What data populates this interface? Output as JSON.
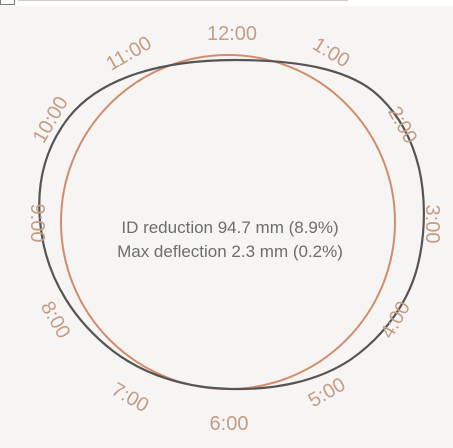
{
  "window": {
    "title": ""
  },
  "overlay": {
    "visible_toggle": "checkbox"
  },
  "clock_labels": [
    "12:00",
    "1:00",
    "2:00",
    "3:00",
    "4:00",
    "5:00",
    "6:00",
    "7:00",
    "8:00",
    "9:00",
    "10:00",
    "11:00"
  ],
  "summary": {
    "line1": "ID reduction 94.7 mm (8.9%)",
    "line2": "Max deflection 2.3 mm (0.2%)"
  },
  "colors": {
    "background": "#f7f5f4",
    "reference_circle": "#d18d6b",
    "measured_profile": "#555555",
    "labels": "#c39d86",
    "text": "#6d6d6d"
  },
  "icons": [
    "checkbox-icon"
  ]
}
